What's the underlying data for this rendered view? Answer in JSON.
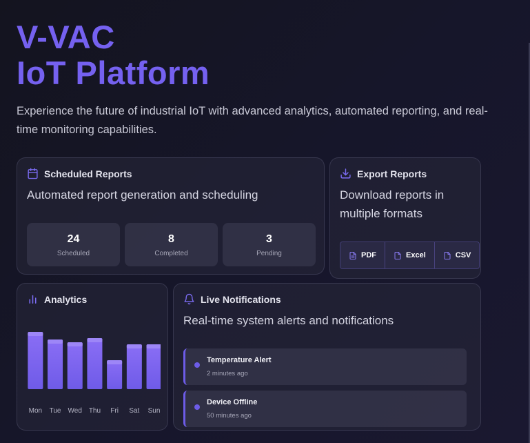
{
  "hero": {
    "title_line1": "V-VAC",
    "title_line2": "IoT Platform",
    "subtitle": "Experience the future of industrial IoT with advanced analytics, automated reporting, and real-time monitoring capabilities."
  },
  "scheduled_reports": {
    "icon": "calendar-icon",
    "title": "Scheduled Reports",
    "description": "Automated report generation and scheduling",
    "stats": [
      {
        "value": "24",
        "label": "Scheduled"
      },
      {
        "value": "8",
        "label": "Completed"
      },
      {
        "value": "3",
        "label": "Pending"
      }
    ]
  },
  "export_reports": {
    "icon": "download-icon",
    "title": "Export Reports",
    "description": "Download reports in multiple formats",
    "formats": [
      {
        "label": "PDF",
        "icon": "file-icon"
      },
      {
        "label": "Excel",
        "icon": "file-icon"
      },
      {
        "label": "CSV",
        "icon": "file-icon"
      }
    ]
  },
  "analytics": {
    "icon": "bar-chart-icon",
    "title": "Analytics"
  },
  "chart_data": {
    "type": "bar",
    "categories": [
      "Mon",
      "Tue",
      "Wed",
      "Thu",
      "Fri",
      "Sat",
      "Sun"
    ],
    "values": [
      83,
      72,
      68,
      74,
      42,
      65,
      65
    ],
    "ylim": [
      0,
      100
    ],
    "grid": false,
    "colors": [
      "#6f5be8",
      "#8a6ef5",
      "#9d86f7"
    ]
  },
  "notifications": {
    "icon": "bell-icon",
    "title": "Live Notifications",
    "description": "Real-time system alerts and notifications",
    "items": [
      {
        "title": "Temperature Alert",
        "time": "2 minutes ago"
      },
      {
        "title": "Device Offline",
        "time": "50 minutes ago"
      }
    ]
  },
  "colors": {
    "accent": "#7561f0",
    "background": "#16162a"
  }
}
